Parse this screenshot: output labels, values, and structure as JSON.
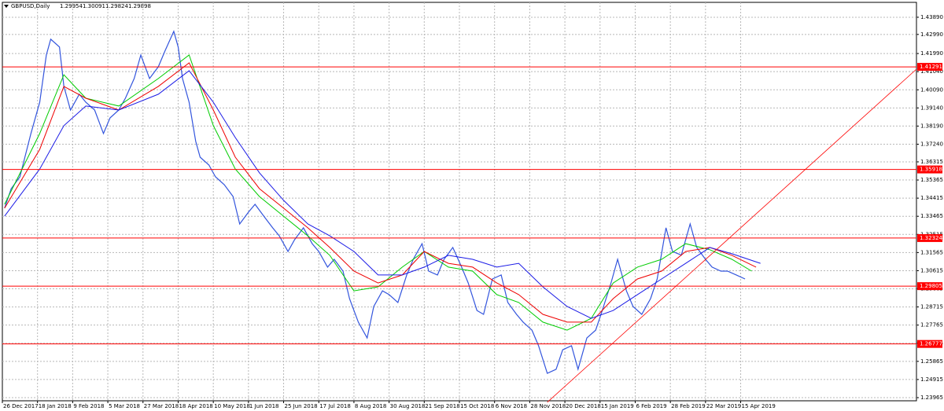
{
  "chart_data": {
    "type": "line",
    "title": "GBPUSD,Daily",
    "header_values": [
      1.29954,
      1.30091,
      1.29824,
      1.29898
    ],
    "xlim": [
      0,
      416
    ],
    "ylim": [
      1.238,
      1.4467
    ],
    "grid": true,
    "xticks": [
      {
        "value": 0,
        "label": "26 Dec 2017"
      },
      {
        "value": 16,
        "label": "18 Jan 2018"
      },
      {
        "value": 32,
        "label": "9 Feb 2018"
      },
      {
        "value": 48,
        "label": "5 Mar 2018"
      },
      {
        "value": 64,
        "label": "27 Mar 2018"
      },
      {
        "value": 80,
        "label": "18 Apr 2018"
      },
      {
        "value": 96,
        "label": "10 May 2018"
      },
      {
        "value": 112,
        "label": "1 Jun 2018"
      },
      {
        "value": 128,
        "label": "25 Jun 2018"
      },
      {
        "value": 144,
        "label": "17 Jul 2018"
      },
      {
        "value": 160,
        "label": "8 Aug 2018"
      },
      {
        "value": 176,
        "label": "30 Aug 2018"
      },
      {
        "value": 192,
        "label": "21 Sep 2018"
      },
      {
        "value": 208,
        "label": "15 Oct 2018"
      },
      {
        "value": 224,
        "label": "6 Nov 2018"
      },
      {
        "value": 240,
        "label": "28 Nov 2018"
      },
      {
        "value": 256,
        "label": "20 Dec 2018"
      },
      {
        "value": 272,
        "label": "15 Jan 2019"
      },
      {
        "value": 288,
        "label": "6 Feb 2019"
      },
      {
        "value": 304,
        "label": "28 Feb 2019"
      },
      {
        "value": 320,
        "label": "22 Mar 2019"
      },
      {
        "value": 336,
        "label": "15 Apr 2019"
      }
    ],
    "yticks": [
      {
        "value": 1.4389,
        "label": "1.43890"
      },
      {
        "value": 1.4299,
        "label": "1.42990"
      },
      {
        "value": 1.4199,
        "label": "1.41990"
      },
      {
        "value": 1.4104,
        "label": "1.41040"
      },
      {
        "value": 1.4009,
        "label": "1.40090"
      },
      {
        "value": 1.3914,
        "label": "1.39140"
      },
      {
        "value": 1.3819,
        "label": "1.38190"
      },
      {
        "value": 1.3724,
        "label": "1.37240"
      },
      1.36315,
      1.35365,
      1.34415,
      1.33465,
      1.32515,
      1.31565,
      1.30615,
      1.29665,
      1.28715,
      1.27765,
      1.26815,
      1.25865,
      1.24915,
      1.23965
    ],
    "levels": [
      1.41291,
      1.35918,
      1.32324,
      1.29805,
      1.26777
    ],
    "level_color": "#ff0000",
    "series": [
      {
        "color": "#3355dd",
        "x": [
          1,
          4,
          8,
          13,
          17,
          20,
          22,
          26,
          28,
          31,
          35,
          38,
          42,
          46,
          49,
          53,
          56,
          60,
          63,
          67,
          71,
          74,
          78,
          80,
          82,
          85,
          88,
          90,
          94,
          97,
          101,
          105,
          108,
          112,
          115,
          119,
          123,
          126,
          130,
          133,
          137,
          141,
          144,
          148,
          151,
          155,
          158,
          162,
          166,
          169,
          173,
          176,
          180,
          184,
          187,
          191,
          194,
          198,
          201,
          205,
          209,
          212,
          216,
          219,
          223,
          227,
          230,
          234,
          237,
          241,
          244,
          248,
          252,
          255,
          259,
          262,
          266,
          270,
          273,
          277,
          280,
          284,
          287,
          291,
          295,
          298,
          302,
          305,
          309,
          313,
          316,
          320,
          323,
          327,
          330,
          334,
          338
        ],
        "values": [
          1.3389,
          1.3491,
          1.3553,
          1.378,
          1.3944,
          1.4191,
          1.4274,
          1.4233,
          1.4027,
          1.3903,
          1.3986,
          1.3944,
          1.3903,
          1.378,
          1.3862,
          1.3903,
          1.3965,
          1.4068,
          1.4191,
          1.4068,
          1.413,
          1.4212,
          1.4315,
          1.4233,
          1.4068,
          1.3944,
          1.3739,
          1.3656,
          1.3615,
          1.3553,
          1.3512,
          1.345,
          1.3306,
          1.3368,
          1.3409,
          1.3347,
          1.3286,
          1.3244,
          1.3162,
          1.3224,
          1.3286,
          1.3203,
          1.3162,
          1.308,
          1.3121,
          1.3059,
          1.2915,
          1.2792,
          1.2709,
          1.2874,
          1.2956,
          1.2936,
          1.2895,
          1.3039,
          1.3121,
          1.3203,
          1.3059,
          1.3039,
          1.3121,
          1.3183,
          1.308,
          1.2997,
          1.2853,
          1.2833,
          1.3018,
          1.3039,
          1.2895,
          1.2833,
          1.2792,
          1.275,
          1.2668,
          1.2524,
          1.2545,
          1.2647,
          1.2668,
          1.2545,
          1.2709,
          1.275,
          1.2853,
          1.2997,
          1.3121,
          1.2956,
          1.2874,
          1.2833,
          1.2915,
          1.3018,
          1.3286,
          1.3162,
          1.3143,
          1.3306,
          1.3183,
          1.3121,
          1.308,
          1.3059,
          1.3059,
          1.3039,
          1.3018
        ]
      },
      {
        "color": "#00cc00",
        "x": [
          1,
          17,
          28,
          38,
          53,
          71,
          85,
          96,
          106,
          117,
          128,
          139,
          149,
          160,
          171,
          182,
          192,
          203,
          214,
          225,
          235,
          246,
          257,
          268,
          278,
          289,
          300,
          311,
          322,
          332,
          341
        ],
        "values": [
          1.3409,
          1.378,
          1.4088,
          1.3965,
          1.3924,
          1.4068,
          1.4191,
          1.3821,
          1.3594,
          1.345,
          1.3347,
          1.3244,
          1.3142,
          1.2956,
          1.2977,
          1.308,
          1.3162,
          1.308,
          1.3059,
          1.2936,
          1.2895,
          1.2792,
          1.275,
          1.2812,
          1.2997,
          1.308,
          1.3121,
          1.3203,
          1.3171,
          1.3121,
          1.3059
        ]
      },
      {
        "color": "#ee0000",
        "x": [
          1,
          17,
          28,
          38,
          53,
          71,
          85,
          96,
          106,
          117,
          128,
          139,
          149,
          160,
          171,
          182,
          192,
          203,
          214,
          225,
          235,
          246,
          257,
          268,
          278,
          289,
          300,
          311,
          322,
          332,
          343
        ],
        "values": [
          1.3389,
          1.3697,
          1.4027,
          1.3965,
          1.3903,
          1.4027,
          1.415,
          1.3903,
          1.3656,
          1.3491,
          1.3389,
          1.3286,
          1.3183,
          1.3059,
          1.2997,
          1.3039,
          1.3162,
          1.31,
          1.308,
          1.2997,
          1.2936,
          1.2833,
          1.2792,
          1.2792,
          1.2915,
          1.3018,
          1.3059,
          1.3162,
          1.3183,
          1.3142,
          1.308
        ]
      },
      {
        "color": "#1a1ae6",
        "x": [
          1,
          17,
          28,
          38,
          53,
          71,
          85,
          96,
          106,
          117,
          128,
          139,
          149,
          160,
          171,
          182,
          192,
          203,
          214,
          225,
          235,
          246,
          257,
          268,
          278,
          289,
          300,
          311,
          322,
          332,
          345
        ],
        "values": [
          1.3347,
          1.3594,
          1.3821,
          1.3924,
          1.3903,
          1.3986,
          1.4109,
          1.3944,
          1.3759,
          1.3574,
          1.343,
          1.3306,
          1.3244,
          1.3162,
          1.3039,
          1.3039,
          1.308,
          1.3142,
          1.3121,
          1.308,
          1.31,
          1.2977,
          1.2874,
          1.2812,
          1.2853,
          1.2936,
          1.3018,
          1.31,
          1.3183,
          1.315,
          1.31
        ]
      }
    ],
    "trendline": {
      "color": "#ff0000",
      "x": [
        248,
        416
      ],
      "values": [
        1.2372,
        1.4117
      ]
    }
  }
}
